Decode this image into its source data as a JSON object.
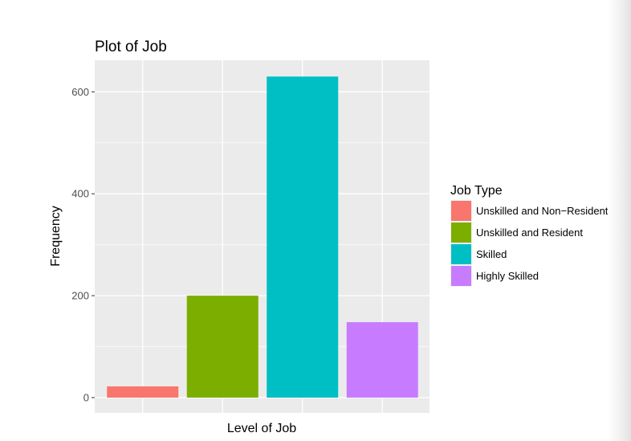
{
  "chart_data": {
    "type": "bar",
    "title": "Plot of Job",
    "xlabel": "Level of Job",
    "ylabel": "Frequency",
    "categories": [
      "Unskilled and Non−Resident",
      "Unskilled and Resident",
      "Skilled",
      "Highly Skilled"
    ],
    "values": [
      22,
      200,
      630,
      148
    ],
    "colors": [
      "#F8766D",
      "#7CAE00",
      "#00BFC4",
      "#C77CFF"
    ],
    "ylim": [
      -30,
      662
    ],
    "yticks": [
      0,
      200,
      400,
      600
    ],
    "ytick_labels": [
      "0",
      "200",
      "400",
      "600"
    ],
    "grid": true,
    "background": "#EBEBEB",
    "legend": {
      "title": "Job Type",
      "position": "right",
      "entries": [
        "Unskilled and Non−Resident",
        "Unskilled and Resident",
        "Skilled",
        "Highly Skilled"
      ]
    }
  }
}
